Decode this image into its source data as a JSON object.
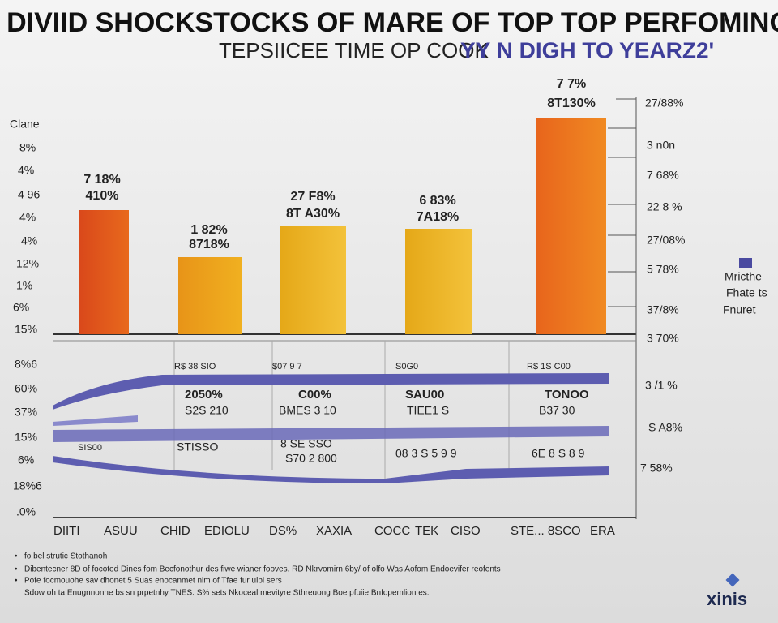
{
  "header": {
    "title": "DIVIID SHOCKSTOCKS OF MARE OF TOP TOP PERFOMING",
    "subtitle": "TEPSIICEE TIME OP COOK",
    "subtitle_accent": "YY N DIGH TO YEARZ2'"
  },
  "left_axis": [
    "Clane",
    "8%",
    "4%",
    "4 96",
    "4%",
    "4%",
    "12%",
    "1%",
    "6%",
    "15%"
  ],
  "bars": [
    {
      "top": "7 18%",
      "bottom": "410%"
    },
    {
      "top": "1 82%",
      "bottom": "8718%"
    },
    {
      "top": "27 F8%",
      "bottom": "8T A30%"
    },
    {
      "top": "6 83%",
      "bottom": "7A18%"
    },
    {
      "top": "7 7%",
      "bottom": "8T130%"
    }
  ],
  "right_axis": [
    "27/88%",
    "3 n0n",
    "7 68%",
    "22 8 %",
    "27/08%",
    "5 78%",
    "37/8%",
    "3 70%"
  ],
  "lower_left_axis": [
    "8%6",
    "60%",
    "37%",
    "15%",
    "6%",
    "18%6",
    ".0%"
  ],
  "lower_right_axis": [
    "3 /1 %",
    "S A8%",
    "7 58%"
  ],
  "lower_rows": [
    [
      "R$ 38 SIO",
      "$07 9 7",
      "S0G0",
      "R$ 1S C00"
    ],
    [
      "2050%",
      "C00%",
      "SAU00",
      "TONOO"
    ],
    [
      "S2S 210",
      "BMES 3 10",
      "TIEE1 S",
      "B37 30"
    ],
    [
      "SIS00",
      "STISSO",
      "8 SE SSO",
      "S70 2 800",
      "08 3 S 5 9 9",
      "6E 8 S 8 9"
    ]
  ],
  "x_labels": [
    "DIITI",
    "ASUU",
    "CHID",
    "EDIOLU",
    "DS%",
    "XAXIA",
    "COCC",
    "TEK",
    "CISO",
    "STE... 8SCO",
    "ERA"
  ],
  "legend": [
    "Mricthe",
    "Fhate ts",
    "Fnuret"
  ],
  "notes": [
    "fo bel strutic Stothanoh",
    "Dibentecner 8D of focotod Dines fom Becfonothur des fiwe wianer fooves. RD Nkrvomirn 6by/ of olfo Was Aofom Endoevifer reofents",
    "Pofe focmouohe sav dhonet 5 Suas enocanmet nim of Tfae fur ulpi sers",
    "Sdow oh ta Enugnnonne bs sn prpetnhy TNES. S% sets Nkoceal mevityre Sthreuong Boe pfuiie Bnfopemlion es."
  ],
  "logo": "xinis"
}
